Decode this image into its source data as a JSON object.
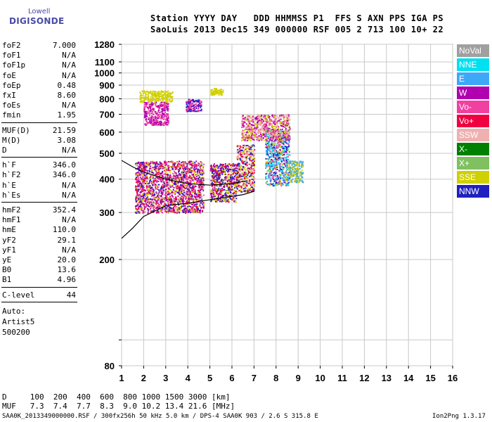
{
  "logo": {
    "line1": "Lowell",
    "line2": "DIGISONDE"
  },
  "header": {
    "row1": "Station YYYY DAY   DDD HHMMSS P1  FFS S AXN PPS IGA PS",
    "row2": "SaoLuis 2013 Dec15 349 000000 RSF 005 2 713 100 10+ 22"
  },
  "params": {
    "group1": [
      [
        "foF2",
        "7.000"
      ],
      [
        "foF1",
        "N/A"
      ],
      [
        "foF1p",
        "N/A"
      ],
      [
        "foE",
        "N/A"
      ],
      [
        "foEp",
        "0.48"
      ],
      [
        "fxI",
        "8.60"
      ],
      [
        "foEs",
        "N/A"
      ],
      [
        "fmin",
        "1.95"
      ]
    ],
    "group2": [
      [
        "MUF(D)",
        "21.59"
      ],
      [
        "M(D)",
        "3.08"
      ],
      [
        "D",
        "N/A"
      ]
    ],
    "group3": [
      [
        "h`F",
        "346.0"
      ],
      [
        "h`F2",
        "346.0"
      ],
      [
        "h`E",
        "N/A"
      ],
      [
        "h`Es",
        "N/A"
      ]
    ],
    "group4": [
      [
        "hmF2",
        "352.4"
      ],
      [
        "hmF1",
        "N/A"
      ],
      [
        "hmE",
        "110.0"
      ],
      [
        "yF2",
        "29.1"
      ],
      [
        "yF1",
        "N/A"
      ],
      [
        "yE",
        "20.0"
      ],
      [
        "B0",
        "13.6"
      ],
      [
        "B1",
        "4.96"
      ]
    ],
    "group5": [
      [
        "C-level",
        "44"
      ]
    ],
    "auto": [
      "Auto:",
      "Artist5",
      "500200"
    ]
  },
  "footer": {
    "d_row": "D     100  200  400  600  800 1000 1500 3000 [km]",
    "muf_row": "MUF   7.3  7.4  7.7  8.3  9.0 10.2 13.4 21.6 [MHz]",
    "file_info": "SAA0K_2013349000000.RSF / 300fx256h 50 kHz 5.0 km / DPS-4 SAA0K 903 / 2.6 S 315.8 E",
    "version": "Ion2Png 1.3.17"
  },
  "legend": [
    {
      "label": "NoVal",
      "color": "#a0a0a0"
    },
    {
      "label": "NNE",
      "color": "#00e0f0"
    },
    {
      "label": "E",
      "color": "#3ea8f8"
    },
    {
      "label": "W",
      "color": "#b000b0"
    },
    {
      "label": "Vo-",
      "color": "#f040a0"
    },
    {
      "label": "Vo+",
      "color": "#f00040"
    },
    {
      "label": "SSW",
      "color": "#f0b0b0"
    },
    {
      "label": "X-",
      "color": "#008000"
    },
    {
      "label": "X+",
      "color": "#80c060"
    },
    {
      "label": "SSE",
      "color": "#d0d000"
    },
    {
      "label": "NNW",
      "color": "#2020c0"
    }
  ],
  "chart_data": {
    "type": "scatter",
    "title": "",
    "xlabel": "",
    "ylabel": "",
    "xlim": [
      1,
      16
    ],
    "ylim": [
      80,
      1280
    ],
    "y_scale": "log",
    "x_ticks": [
      1,
      2,
      3,
      4,
      5,
      6,
      7,
      8,
      9,
      10,
      11,
      12,
      13,
      14,
      15,
      16
    ],
    "y_ticks": [
      80,
      100,
      200,
      300,
      400,
      500,
      600,
      700,
      800,
      900,
      1000,
      1100,
      1280
    ],
    "y_tick_labels": [
      "80",
      "",
      "200",
      "300",
      "400",
      "500",
      "600",
      "700",
      "800",
      "900",
      "1000",
      "1100",
      "1280"
    ],
    "grid": true,
    "echo_clusters": [
      {
        "name": "F-trace",
        "x": [
          1.6,
          4.7
        ],
        "y": [
          300,
          470
        ],
        "colors": [
          "#b000b0",
          "#f00040",
          "#2020c0",
          "#d0d000",
          "#f040a0"
        ]
      },
      {
        "name": "F-trace-2",
        "x": [
          5.0,
          6.2
        ],
        "y": [
          330,
          460
        ],
        "colors": [
          "#f00040",
          "#d0d000",
          "#b000b0",
          "#2020c0"
        ]
      },
      {
        "name": "F-trace-3",
        "x": [
          6.2,
          7.0
        ],
        "y": [
          360,
          540
        ],
        "colors": [
          "#f00040",
          "#d0d000",
          "#2020c0",
          "#f0b0b0"
        ]
      },
      {
        "name": "F-trace-4",
        "x": [
          7.5,
          8.6
        ],
        "y": [
          380,
          620
        ],
        "colors": [
          "#2020c0",
          "#3ea8f8",
          "#d0d000",
          "#00e0f0",
          "#f040a0"
        ]
      },
      {
        "name": "F-trace-5",
        "x": [
          8.6,
          9.2
        ],
        "y": [
          390,
          470
        ],
        "colors": [
          "#3ea8f8",
          "#80c060",
          "#d0d000"
        ]
      },
      {
        "name": "upper-SSE",
        "x": [
          1.8,
          3.3
        ],
        "y": [
          780,
          860
        ],
        "colors": [
          "#d0d000"
        ]
      },
      {
        "name": "upper-W",
        "x": [
          2.0,
          3.1
        ],
        "y": [
          640,
          780
        ],
        "colors": [
          "#b000b0",
          "#f040a0"
        ]
      },
      {
        "name": "upper-mid",
        "x": [
          3.9,
          4.6
        ],
        "y": [
          720,
          800
        ],
        "colors": [
          "#b000b0",
          "#2020c0",
          "#f040a0"
        ]
      },
      {
        "name": "upper-right",
        "x": [
          5.0,
          5.6
        ],
        "y": [
          830,
          880
        ],
        "colors": [
          "#d0d000"
        ]
      },
      {
        "name": "high-scatter",
        "x": [
          6.4,
          8.6
        ],
        "y": [
          560,
          700
        ],
        "colors": [
          "#f0b0b0",
          "#f040a0",
          "#d0d000",
          "#b000b0"
        ]
      }
    ],
    "profile_curve": {
      "x": [
        1.0,
        1.5,
        2.0,
        3.0,
        4.0,
        5.0,
        6.0,
        6.5,
        7.0
      ],
      "y": [
        240,
        262,
        290,
        318,
        325,
        335,
        345,
        350,
        360
      ]
    },
    "ordinary_trace_curve": {
      "x": [
        1.0,
        1.5,
        2.0,
        3.0,
        4.0,
        5.0,
        6.0,
        6.7
      ],
      "y": [
        470,
        445,
        425,
        400,
        385,
        380,
        385,
        395
      ]
    }
  }
}
